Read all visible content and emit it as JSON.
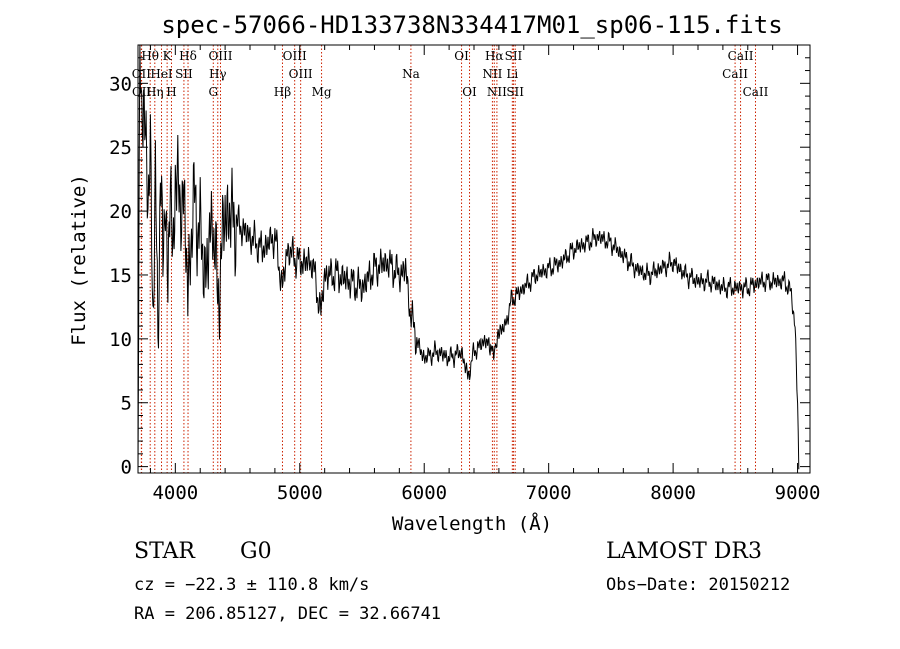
{
  "chart_data": {
    "type": "line",
    "title": "spec-57066-HD133738N334417M01_sp06-115.fits",
    "xlabel": "Wavelength (Å)",
    "ylabel": "Flux (relative)",
    "xlim": [
      3700,
      9100
    ],
    "ylim": [
      -0.5,
      33
    ],
    "xticks": [
      4000,
      5000,
      6000,
      7000,
      8000,
      9000
    ],
    "yticks": [
      0,
      5,
      10,
      15,
      20,
      25,
      30
    ],
    "series": [
      {
        "name": "spectrum",
        "color": "#000000",
        "x": [
          3700,
          3715,
          3730,
          3745,
          3760,
          3780,
          3800,
          3820,
          3840,
          3860,
          3880,
          3900,
          3920,
          3940,
          3960,
          3980,
          4000,
          4030,
          4060,
          4100,
          4150,
          4200,
          4250,
          4300,
          4340,
          4400,
          4500,
          4600,
          4700,
          4800,
          4860,
          4900,
          5000,
          5100,
          5170,
          5200,
          5300,
          5400,
          5500,
          5600,
          5700,
          5800,
          5850,
          5890,
          5950,
          6000,
          6100,
          6200,
          6300,
          6350,
          6400,
          6500,
          6563,
          6600,
          6650,
          6700,
          6800,
          6900,
          7000,
          7100,
          7200,
          7300,
          7400,
          7500,
          7600,
          7700,
          7800,
          7900,
          8000,
          8100,
          8200,
          8300,
          8400,
          8500,
          8600,
          8700,
          8800,
          8900,
          8950,
          8980,
          9000,
          9010
        ],
        "y": [
          2,
          30,
          27,
          30,
          26,
          20,
          25,
          12,
          22,
          10,
          24,
          15,
          22,
          14,
          23,
          15,
          24,
          20,
          22,
          14,
          21,
          18,
          15,
          20,
          13,
          20,
          19,
          18,
          17,
          18,
          14,
          17,
          16,
          16,
          12,
          15,
          15,
          14.5,
          14,
          15.5,
          16,
          15,
          15.5,
          12,
          9.5,
          8.5,
          9,
          8.5,
          9,
          7,
          9,
          10,
          9,
          10.5,
          11,
          13,
          14,
          15,
          15.5,
          16,
          17,
          17.5,
          18,
          17.5,
          16.5,
          15.5,
          15,
          15.5,
          16,
          15,
          14.5,
          14.5,
          14,
          14,
          14,
          14.5,
          14.5,
          14.5,
          13.5,
          11,
          5,
          -0.2
        ]
      }
    ],
    "emission_lines": [
      {
        "label": "Hθ",
        "x": 3798,
        "row": 0
      },
      {
        "label": "K",
        "x": 3934,
        "row": 0
      },
      {
        "label": "Hδ",
        "x": 4102,
        "row": 0
      },
      {
        "label": "OIII",
        "x": 4363,
        "row": 0
      },
      {
        "label": "OIII",
        "x": 4959,
        "row": 0
      },
      {
        "label": "OI",
        "x": 6300,
        "row": 0
      },
      {
        "label": "Hα",
        "x": 6563,
        "row": 0
      },
      {
        "label": "SII",
        "x": 6717,
        "row": 0
      },
      {
        "label": "CaII",
        "x": 8542,
        "row": 0
      },
      {
        "label": "OII",
        "x": 3727,
        "row": 1
      },
      {
        "label": "HeI",
        "x": 3889,
        "row": 1
      },
      {
        "label": "SII",
        "x": 4069,
        "row": 1
      },
      {
        "label": "Hγ",
        "x": 4341,
        "row": 1
      },
      {
        "label": "OIII",
        "x": 5007,
        "row": 1
      },
      {
        "label": "Na",
        "x": 5893,
        "row": 1
      },
      {
        "label": "NII",
        "x": 6548,
        "row": 1
      },
      {
        "label": "Li",
        "x": 6708,
        "row": 1
      },
      {
        "label": "CaII",
        "x": 8498,
        "row": 1
      },
      {
        "label": "OII",
        "x": 3729,
        "row": 2
      },
      {
        "label": "Hη",
        "x": 3835,
        "row": 2
      },
      {
        "label": "H",
        "x": 3969,
        "row": 2
      },
      {
        "label": "G",
        "x": 4305,
        "row": 2
      },
      {
        "label": "Hβ",
        "x": 4861,
        "row": 2
      },
      {
        "label": "Mg",
        "x": 5175,
        "row": 2
      },
      {
        "label": "OI",
        "x": 6364,
        "row": 2
      },
      {
        "label": "NII",
        "x": 6584,
        "row": 2
      },
      {
        "label": "SII",
        "x": 6731,
        "row": 2
      },
      {
        "label": "CaII",
        "x": 8662,
        "row": 2
      }
    ]
  },
  "info": {
    "class": "STAR",
    "subclass": "G0",
    "survey": "LAMOST DR3",
    "cz": "cz = −22.3 ± 110.8 km/s",
    "obs_date": "Obs−Date: 20150212",
    "radec": "RA = 206.85127, DEC =  32.66741"
  },
  "colors": {
    "line_marker": "#cc2200",
    "axis": "#000000",
    "background": "#ffffff"
  }
}
